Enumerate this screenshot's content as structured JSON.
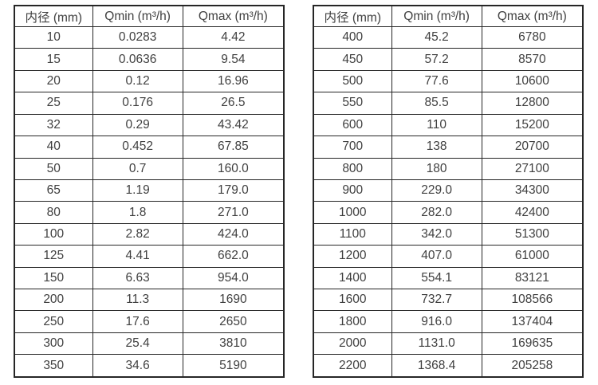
{
  "page": {
    "background": "#ffffff",
    "description_labels": {
      "col_diameter": "内径 (mm)",
      "col_qmin": "Qmin (m³/h)",
      "col_qmax": "Qmax (m³/h)"
    }
  },
  "colors": {
    "border": "#262626",
    "text": "#404040",
    "background": "#ffffff"
  },
  "tables": [
    {
      "name": "flow-range-table-small-diameters",
      "headers": [
        "内径 (mm)",
        "Qmin (m³/h)",
        "Qmax (m³/h)"
      ],
      "rows": [
        [
          "10",
          "0.0283",
          "4.42"
        ],
        [
          "15",
          "0.0636",
          "9.54"
        ],
        [
          "20",
          "0.12",
          "16.96"
        ],
        [
          "25",
          "0.176",
          "26.5"
        ],
        [
          "32",
          "0.29",
          "43.42"
        ],
        [
          "40",
          "0.452",
          "67.85"
        ],
        [
          "50",
          "0.7",
          "160.0"
        ],
        [
          "65",
          "1.19",
          "179.0"
        ],
        [
          "80",
          "1.8",
          "271.0"
        ],
        [
          "100",
          "2.82",
          "424.0"
        ],
        [
          "125",
          "4.41",
          "662.0"
        ],
        [
          "150",
          "6.63",
          "954.0"
        ],
        [
          "200",
          "11.3",
          "1690"
        ],
        [
          "250",
          "17.6",
          "2650"
        ],
        [
          "300",
          "25.4",
          "3810"
        ],
        [
          "350",
          "34.6",
          "5190"
        ]
      ]
    },
    {
      "name": "flow-range-table-large-diameters",
      "headers": [
        "内径 (mm)",
        "Qmin (m³/h)",
        "Qmax (m³/h)"
      ],
      "rows": [
        [
          "400",
          "45.2",
          "6780"
        ],
        [
          "450",
          "57.2",
          "8570"
        ],
        [
          "500",
          "77.6",
          "10600"
        ],
        [
          "550",
          "85.5",
          "12800"
        ],
        [
          "600",
          "110",
          "15200"
        ],
        [
          "700",
          "138",
          "20700"
        ],
        [
          "800",
          "180",
          "27100"
        ],
        [
          "900",
          "229.0",
          "34300"
        ],
        [
          "1000",
          "282.0",
          "42400"
        ],
        [
          "1100",
          "342.0",
          "51300"
        ],
        [
          "1200",
          "407.0",
          "61000"
        ],
        [
          "1400",
          "554.1",
          "83121"
        ],
        [
          "1600",
          "732.7",
          "108566"
        ],
        [
          "1800",
          "916.0",
          "137404"
        ],
        [
          "2000",
          "1131.0",
          "169635"
        ],
        [
          "2200",
          "1368.4",
          "205258"
        ]
      ]
    }
  ]
}
